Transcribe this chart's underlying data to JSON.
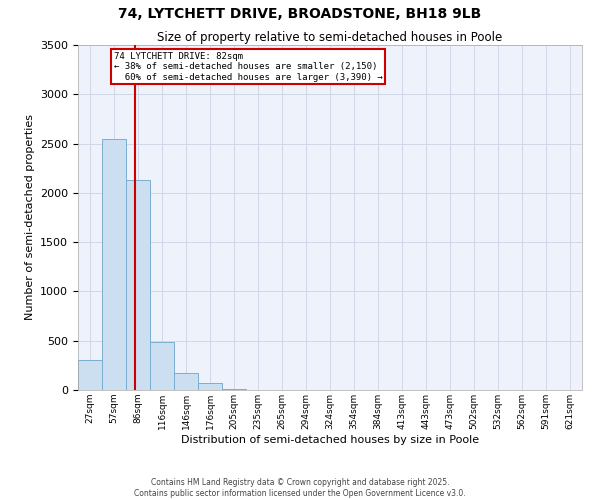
{
  "title1": "74, LYTCHETT DRIVE, BROADSTONE, BH18 9LB",
  "title2": "Size of property relative to semi-detached houses in Poole",
  "xlabel": "Distribution of semi-detached houses by size in Poole",
  "ylabel": "Number of semi-detached properties",
  "bin_labels": [
    "27sqm",
    "57sqm",
    "86sqm",
    "116sqm",
    "146sqm",
    "176sqm",
    "205sqm",
    "235sqm",
    "265sqm",
    "294sqm",
    "324sqm",
    "354sqm",
    "384sqm",
    "413sqm",
    "443sqm",
    "473sqm",
    "502sqm",
    "532sqm",
    "562sqm",
    "591sqm",
    "621sqm"
  ],
  "bar_heights": [
    300,
    2550,
    2130,
    490,
    175,
    75,
    10,
    0,
    0,
    0,
    0,
    0,
    0,
    0,
    0,
    0,
    0,
    0,
    0,
    0,
    0
  ],
  "bar_color": "#ccdff0",
  "bar_edge_color": "#7aaecf",
  "property_size_bin": 1,
  "property_label": "74 LYTCHETT DRIVE: 82sqm",
  "pct_smaller": 38,
  "pct_larger": 60,
  "num_smaller": 2150,
  "num_larger": 3390,
  "vline_color": "#cc0000",
  "annotation_box_color": "#cc0000",
  "ylim": [
    0,
    3500
  ],
  "yticks": [
    0,
    500,
    1000,
    1500,
    2000,
    2500,
    3000,
    3500
  ],
  "grid_color": "#d0d8e8",
  "background_color": "#eef2fa",
  "footer_line1": "Contains HM Land Registry data © Crown copyright and database right 2025.",
  "footer_line2": "Contains public sector information licensed under the Open Government Licence v3.0."
}
